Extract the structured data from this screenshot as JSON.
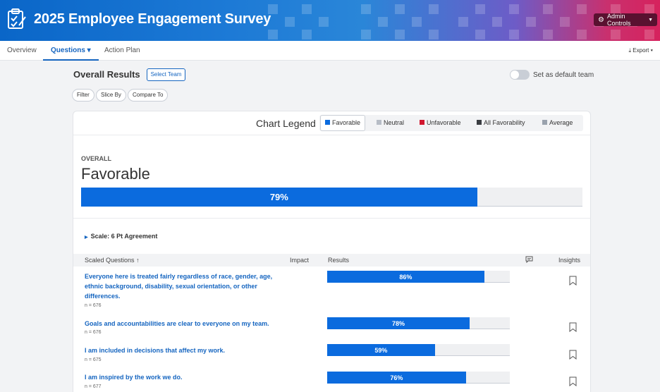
{
  "header": {
    "title": "2025 Employee Engagement Survey",
    "admin_label": "Admin Controls"
  },
  "nav": {
    "tabs": [
      {
        "label": "Overview"
      },
      {
        "label": "Questions ▾",
        "active": true
      },
      {
        "label": "Action Plan"
      }
    ],
    "export_label": "Export ▾"
  },
  "toolbar": {
    "title": "Overall Results",
    "select_team": "Select Team",
    "default_label": "Set as default team",
    "filters": [
      "Filter",
      "Slice By",
      "Compare To"
    ]
  },
  "legend": {
    "label": "Chart Legend",
    "items": [
      {
        "label": "Favorable",
        "color": "#0b6bde"
      },
      {
        "label": "Neutral",
        "color": "#b7bdc6"
      },
      {
        "label": "Unfavorable",
        "color": "#d1172f"
      },
      {
        "label": "All Favorability",
        "color": "#3a3d42"
      },
      {
        "label": "Average",
        "color": "#9aa2ad"
      }
    ]
  },
  "overall": {
    "caption": "OVERALL",
    "label": "Favorable",
    "value_text": "79%",
    "value": 79
  },
  "scale_label": "Scale: 6 Pt Agreement",
  "table": {
    "headers": {
      "questions": "Scaled Questions",
      "impact": "Impact",
      "results": "Results",
      "insights": "Insights"
    },
    "rows": [
      {
        "question": "Everyone here is treated fairly regardless of race, gender, age, ethnic background, disability, sexual orientation, or other differences.",
        "n": "n = 676",
        "value_text": "86%",
        "value": 86
      },
      {
        "question": "Goals and accountabilities are clear to everyone on my team.",
        "n": "n = 676",
        "value_text": "78%",
        "value": 78
      },
      {
        "question": "I am included in decisions that affect my work.",
        "n": "n = 675",
        "value_text": "59%",
        "value": 59
      },
      {
        "question": "I am inspired by the work we do.",
        "n": "n = 677",
        "value_text": "76%",
        "value": 76
      }
    ]
  }
}
